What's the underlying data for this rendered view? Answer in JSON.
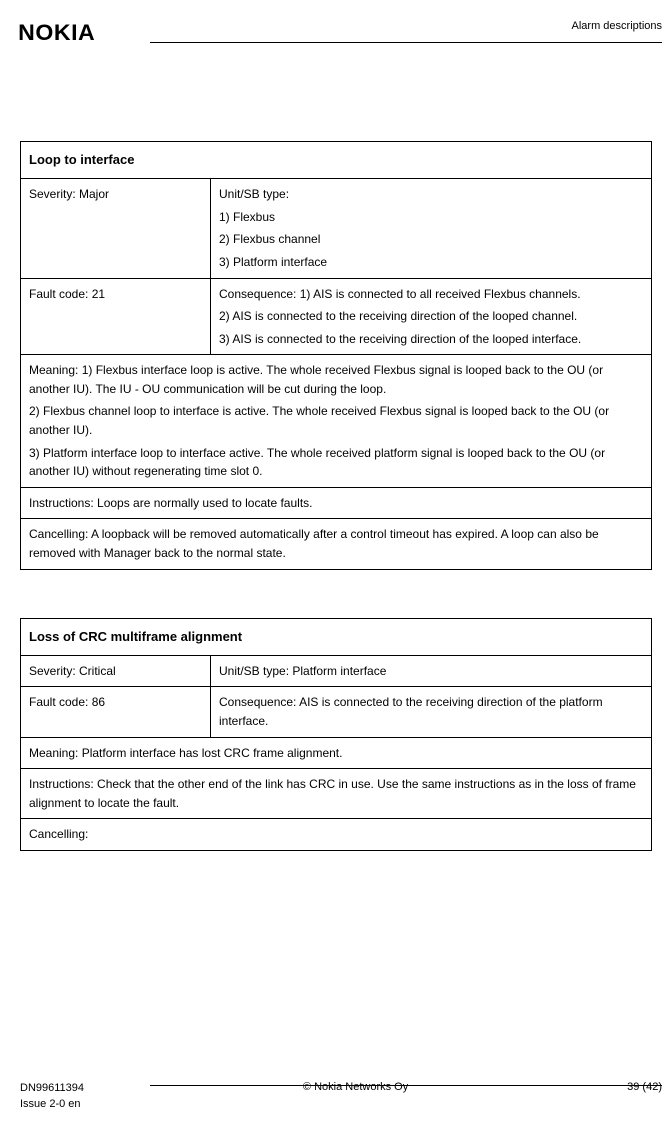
{
  "header": {
    "logo": "NOKIA",
    "section": "Alarm descriptions"
  },
  "tables": {
    "loop": {
      "title": "Loop to interface",
      "severity": "Severity: Major",
      "unitsb_label": "Unit/SB type:",
      "unitsb_1": "1) Flexbus",
      "unitsb_2": "2) Flexbus channel",
      "unitsb_3": "3) Platform interface",
      "fault": "Fault code: 21",
      "cons_1": "Consequence: 1) AIS is connected to all received Flexbus channels.",
      "cons_2": "2) AIS is connected to the receiving direction of the looped channel.",
      "cons_3": "3) AIS is connected to the receiving direction of the looped interface.",
      "meaning_1": "Meaning: 1) Flexbus interface loop is active. The whole received Flexbus signal is looped back to the OU (or another IU). The IU - OU communication will be cut during the loop.",
      "meaning_2": "2) Flexbus channel loop to interface is active. The whole received Flexbus signal is looped back to the OU (or another IU).",
      "meaning_3": "3) Platform interface loop to interface active. The whole received platform signal is looped back to the OU (or another IU) without regenerating time slot 0.",
      "instructions": "Instructions: Loops are normally used to locate faults.",
      "cancelling": "Cancelling: A loopback will be removed automatically after a control timeout has expired. A loop can also be removed with Manager back to the normal state."
    },
    "crc": {
      "title": "Loss of CRC multiframe alignment",
      "severity": "Severity: Critical",
      "unitsb": "Unit/SB type: Platform interface",
      "fault": "Fault code: 86",
      "cons": "Consequence: AIS is connected to the receiving direction of the platform interface.",
      "meaning": "Meaning: Platform interface has lost CRC frame alignment.",
      "instructions": "Instructions: Check that the other end of the link has CRC in use. Use the same instructions as in the loss of frame alignment to locate the fault.",
      "cancelling": "Cancelling:"
    }
  },
  "footer": {
    "doc_num": "DN99611394",
    "issue": "Issue 2-0 en",
    "copyright": "© Nokia Networks Oy",
    "page": "39 (42)"
  }
}
